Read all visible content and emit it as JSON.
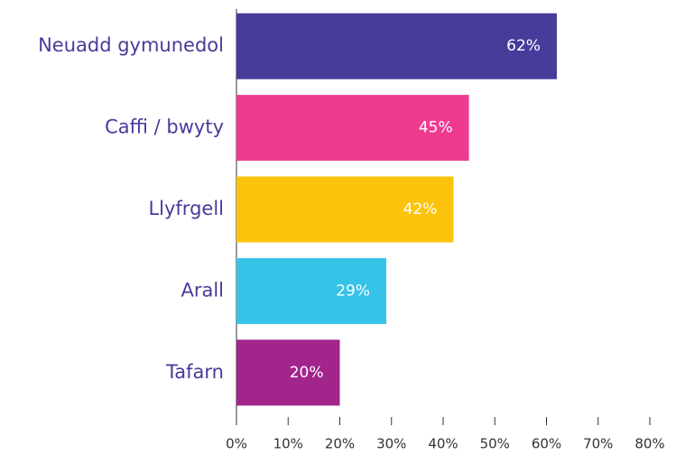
{
  "chart_data": {
    "type": "bar",
    "orientation": "horizontal",
    "categories": [
      "Neuadd gymunedol",
      "Caffi / bwyty",
      "Llyfrgell",
      "Arall",
      "Tafarn"
    ],
    "values": [
      62,
      45,
      42,
      29,
      20
    ],
    "value_labels": [
      "62%",
      "45%",
      "42%",
      "29%",
      "20%"
    ],
    "colors": [
      "#463c9a",
      "#ee3b8f",
      "#fcc30d",
      "#36c3e8",
      "#a1258b"
    ],
    "xlim": [
      0,
      80
    ],
    "xticks": [
      {
        "value": 0,
        "label": "0%"
      },
      {
        "value": 10,
        "label": "10%"
      },
      {
        "value": 20,
        "label": "20%"
      },
      {
        "value": 30,
        "label": "30%"
      },
      {
        "value": 40,
        "label": "40%"
      },
      {
        "value": 50,
        "label": "50%"
      },
      {
        "value": 60,
        "label": "60%"
      },
      {
        "value": 70,
        "label": "70%"
      },
      {
        "value": 80,
        "label": "80%"
      }
    ]
  }
}
